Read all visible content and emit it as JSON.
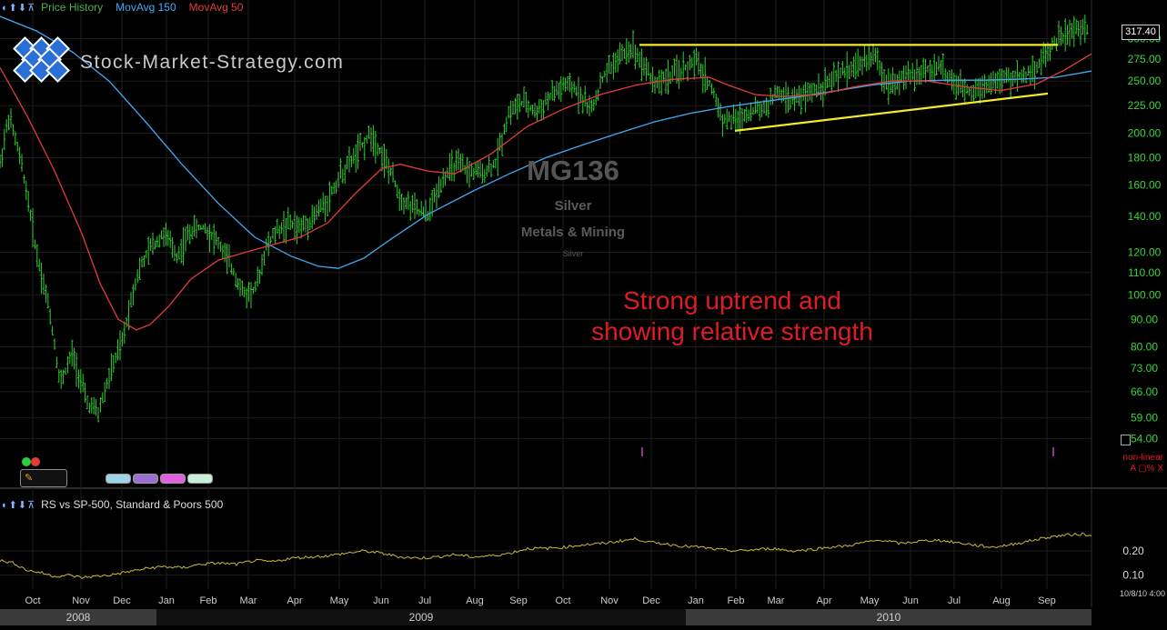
{
  "header": {
    "legend": [
      {
        "label": "Price History",
        "color": "#4caf50"
      },
      {
        "label": "MovAvg 150",
        "color": "#3fa9f5"
      },
      {
        "label": "MovAvg 50",
        "color": "#e23b3b"
      }
    ]
  },
  "logo": {
    "text": "Stock-Market-Strategy.com"
  },
  "watermark": {
    "code": "MG136",
    "name": "Silver",
    "sector": "Metals & Mining",
    "sub": "Silver"
  },
  "annotation": {
    "line1": "Strong uptrend and",
    "line2": "showing relative strength"
  },
  "last_price": "317.40",
  "scale_mode": {
    "line1": "non-linear",
    "line2": "A ▢% X"
  },
  "rs_panel": {
    "legend": "RS vs SP-500, Standard & Poors 500"
  },
  "date_stamp": "10/8/10 4:00",
  "colors": {
    "price_bars": "#2fd02f",
    "ma150": "#3fa9f5",
    "ma50": "#e23b3b",
    "trendline": "#f2ea2a",
    "rs_line": "#c8b93a",
    "axis_text": "#38d638"
  },
  "chart_data": {
    "type": "line",
    "title": "",
    "xlabel": "",
    "ylabel": "",
    "y_scale": "log",
    "ylim": [
      52,
      330
    ],
    "y_ticks": [
      54,
      59,
      66,
      73,
      80,
      90,
      100,
      110,
      120,
      140,
      160,
      180,
      200,
      225,
      250,
      275,
      300
    ],
    "y_tick_labels": [
      "54.00",
      "59.00",
      "66.00",
      "73.00",
      "80.00",
      "90.00",
      "100.00",
      "110.00",
      "120.00",
      "140.00",
      "160.00",
      "180.00",
      "200.00",
      "225.00",
      "250.00",
      "275.00",
      "300.00"
    ],
    "months": [
      {
        "label": "Oct",
        "t": 36
      },
      {
        "label": "Nov",
        "t": 89
      },
      {
        "label": "Dec",
        "t": 134
      },
      {
        "label": "Jan",
        "t": 183
      },
      {
        "label": "Feb",
        "t": 229
      },
      {
        "label": "Mar",
        "t": 273
      },
      {
        "label": "Apr",
        "t": 324
      },
      {
        "label": "May",
        "t": 373
      },
      {
        "label": "Jun",
        "t": 419
      },
      {
        "label": "Jul",
        "t": 467
      },
      {
        "label": "Aug",
        "t": 522
      },
      {
        "label": "Sep",
        "t": 570
      },
      {
        "label": "Oct",
        "t": 619
      },
      {
        "label": "Nov",
        "t": 670
      },
      {
        "label": "Dec",
        "t": 716
      },
      {
        "label": "Jan",
        "t": 765
      },
      {
        "label": "Feb",
        "t": 809
      },
      {
        "label": "Mar",
        "t": 853
      },
      {
        "label": "Apr",
        "t": 906
      },
      {
        "label": "May",
        "t": 956
      },
      {
        "label": "Jun",
        "t": 1001
      },
      {
        "label": "Jul",
        "t": 1049
      },
      {
        "label": "Aug",
        "t": 1101
      },
      {
        "label": "Sep",
        "t": 1151
      }
    ],
    "years": [
      {
        "label": "2008",
        "from": 0,
        "to": 172
      },
      {
        "label": "2009",
        "from": 172,
        "to": 754
      },
      {
        "label": "2010",
        "from": 754,
        "to": 1200
      }
    ],
    "x_range": [
      0,
      1200
    ],
    "series": [
      {
        "name": "Price History",
        "x": [
          0,
          10,
          25,
          40,
          55,
          66,
          80,
          95,
          108,
          122,
          135,
          150,
          165,
          180,
          195,
          210,
          225,
          240,
          255,
          268,
          282,
          292,
          305,
          318,
          330,
          345,
          360,
          375,
          392,
          408,
          422,
          440,
          455,
          470,
          485,
          500,
          515,
          530,
          545,
          560,
          575,
          590,
          605,
          620,
          635,
          650,
          665,
          680,
          695,
          708,
          720,
          735,
          750,
          765,
          780,
          795,
          810,
          825,
          840,
          855,
          870,
          885,
          900,
          915,
          930,
          945,
          960,
          975,
          990,
          1005,
          1020,
          1035,
          1050,
          1065,
          1080,
          1095,
          1110,
          1125,
          1140,
          1155,
          1170,
          1185,
          1197
        ],
        "y": [
          175,
          215,
          170,
          120,
          92,
          68,
          78,
          63,
          60,
          72,
          82,
          108,
          122,
          130,
          118,
          132,
          134,
          125,
          112,
          100,
          103,
          122,
          132,
          136,
          133,
          140,
          150,
          168,
          183,
          200,
          180,
          152,
          145,
          140,
          163,
          175,
          170,
          168,
          176,
          220,
          228,
          218,
          234,
          245,
          240,
          220,
          258,
          276,
          290,
          268,
          248,
          255,
          262,
          272,
          247,
          212,
          212,
          220,
          222,
          238,
          230,
          235,
          244,
          250,
          262,
          268,
          280,
          248,
          253,
          256,
          264,
          266,
          244,
          240,
          246,
          250,
          253,
          256,
          266,
          290,
          305,
          312,
          314
        ]
      },
      {
        "name": "MovAvg 50",
        "x": [
          0,
          30,
          60,
          90,
          110,
          130,
          150,
          165,
          185,
          210,
          240,
          270,
          300,
          330,
          360,
          390,
          420,
          440,
          470,
          500,
          540,
          580,
          620,
          660,
          700,
          740,
          780,
          800,
          830,
          860,
          900,
          940,
          980,
          1020,
          1060,
          1100,
          1140,
          1170,
          1200
        ],
        "y": [
          265,
          215,
          170,
          130,
          105,
          90,
          86,
          88,
          95,
          107,
          116,
          120,
          124,
          128,
          136,
          154,
          172,
          175,
          170,
          168,
          183,
          206,
          222,
          236,
          246,
          252,
          254,
          246,
          236,
          234,
          236,
          244,
          250,
          250,
          244,
          240,
          247,
          262,
          281
        ]
      },
      {
        "name": "MovAvg 150",
        "x": [
          0,
          40,
          80,
          120,
          160,
          200,
          240,
          280,
          320,
          350,
          372,
          400,
          430,
          470,
          520,
          560,
          600,
          640,
          680,
          720,
          760,
          800,
          840,
          880,
          920,
          960,
          1000,
          1040,
          1080,
          1120,
          1160,
          1200
        ],
        "y": [
          330,
          310,
          283,
          250,
          210,
          175,
          148,
          128,
          118,
          113,
          112,
          117,
          127,
          141,
          156,
          168,
          180,
          190,
          200,
          210,
          218,
          224,
          229,
          234,
          240,
          246,
          250,
          251,
          251,
          252,
          254,
          261
        ]
      },
      {
        "name": "Trendline Upper",
        "x": [
          703,
          1163
        ],
        "y": [
          292,
          292
        ]
      },
      {
        "name": "Trendline Lower",
        "x": [
          808,
          1152
        ],
        "y": [
          202,
          237
        ]
      }
    ],
    "rs": {
      "ylim": [
        0.05,
        0.35
      ],
      "y_ticks": [
        0.1,
        0.2
      ],
      "x": [
        0,
        15,
        30,
        45,
        60,
        75,
        90,
        105,
        120,
        135,
        150,
        165,
        180,
        200,
        220,
        240,
        260,
        280,
        300,
        320,
        340,
        360,
        380,
        400,
        420,
        440,
        460,
        480,
        500,
        520,
        540,
        560,
        580,
        600,
        620,
        640,
        660,
        680,
        700,
        715,
        730,
        750,
        770,
        790,
        810,
        830,
        850,
        870,
        890,
        910,
        930,
        950,
        970,
        990,
        1010,
        1030,
        1050,
        1070,
        1090,
        1110,
        1130,
        1150,
        1170,
        1190,
        1200
      ],
      "y": [
        0.16,
        0.15,
        0.12,
        0.11,
        0.095,
        0.1,
        0.09,
        0.095,
        0.1,
        0.11,
        0.12,
        0.13,
        0.135,
        0.13,
        0.145,
        0.15,
        0.145,
        0.16,
        0.155,
        0.17,
        0.175,
        0.18,
        0.19,
        0.2,
        0.19,
        0.175,
        0.17,
        0.175,
        0.185,
        0.175,
        0.18,
        0.19,
        0.21,
        0.21,
        0.215,
        0.225,
        0.23,
        0.24,
        0.25,
        0.235,
        0.23,
        0.22,
        0.215,
        0.205,
        0.2,
        0.205,
        0.21,
        0.2,
        0.205,
        0.215,
        0.22,
        0.235,
        0.245,
        0.23,
        0.24,
        0.245,
        0.235,
        0.225,
        0.215,
        0.225,
        0.24,
        0.255,
        0.265,
        0.27,
        0.26
      ]
    }
  }
}
